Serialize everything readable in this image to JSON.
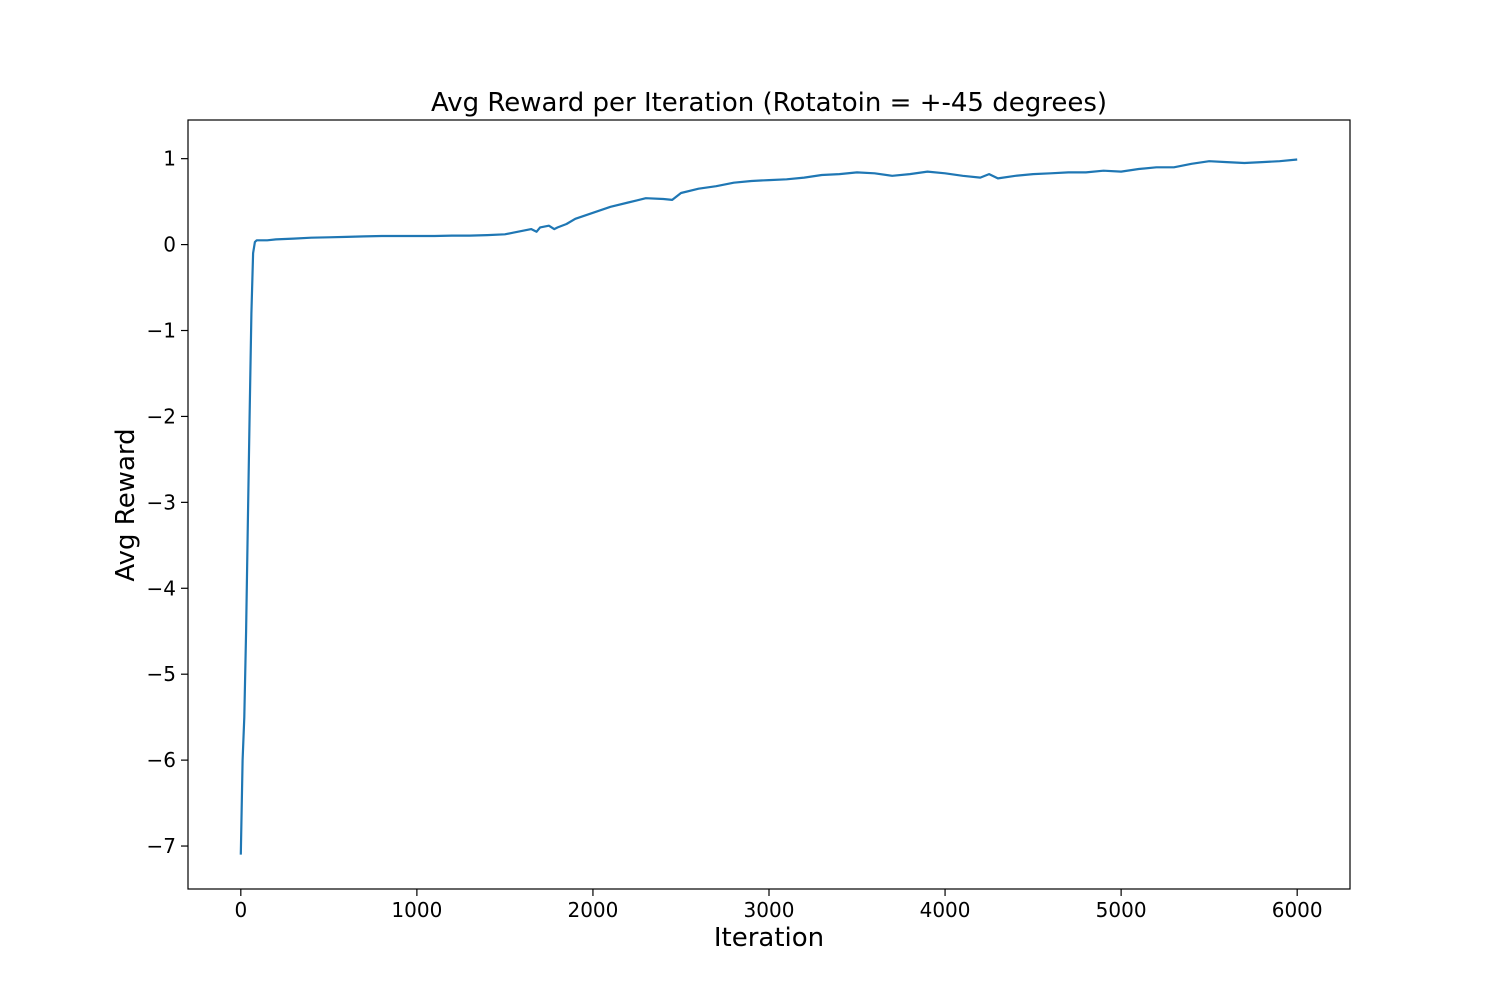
{
  "chart_data": {
    "type": "line",
    "title": "Avg Reward per Iteration (Rotatoin = +-45 degrees)",
    "xlabel": "Iteration",
    "ylabel": "Avg Reward",
    "xlim": [
      -300,
      6300
    ],
    "ylim": [
      -7.5,
      1.45
    ],
    "xticks": [
      0,
      1000,
      2000,
      3000,
      4000,
      5000,
      6000
    ],
    "xtick_labels": [
      "0",
      "1000",
      "2000",
      "3000",
      "4000",
      "5000",
      "6000"
    ],
    "yticks": [
      1,
      0,
      -1,
      -2,
      -3,
      -4,
      -5,
      -6,
      -7
    ],
    "ytick_labels": [
      "1",
      "0",
      "−1",
      "−2",
      "−3",
      "−4",
      "−5",
      "−6",
      "−7"
    ],
    "grid": false,
    "line_color": "#1f77b4",
    "series": [
      {
        "x": [
          0,
          10,
          20,
          30,
          40,
          50,
          60,
          70,
          80,
          90,
          100,
          120,
          150,
          200,
          300,
          400,
          500,
          600,
          700,
          800,
          900,
          1000,
          1100,
          1200,
          1300,
          1400,
          1500,
          1550,
          1600,
          1650,
          1680,
          1700,
          1750,
          1780,
          1800,
          1850,
          1900,
          2000,
          2100,
          2200,
          2300,
          2400,
          2450,
          2500,
          2600,
          2700,
          2800,
          2900,
          3000,
          3100,
          3200,
          3300,
          3400,
          3500,
          3600,
          3700,
          3800,
          3900,
          4000,
          4100,
          4200,
          4250,
          4300,
          4400,
          4500,
          4600,
          4700,
          4800,
          4900,
          5000,
          5100,
          5200,
          5300,
          5400,
          5500,
          5600,
          5700,
          5800,
          5900,
          6000
        ],
        "values": [
          -7.1,
          -6.0,
          -5.5,
          -4.5,
          -3.2,
          -2.0,
          -0.8,
          -0.1,
          0.03,
          0.05,
          0.05,
          0.05,
          0.05,
          0.06,
          0.07,
          0.08,
          0.085,
          0.09,
          0.095,
          0.1,
          0.1,
          0.1,
          0.1,
          0.105,
          0.105,
          0.11,
          0.12,
          0.14,
          0.16,
          0.18,
          0.15,
          0.2,
          0.22,
          0.18,
          0.2,
          0.24,
          0.3,
          0.37,
          0.44,
          0.49,
          0.54,
          0.53,
          0.52,
          0.6,
          0.65,
          0.68,
          0.72,
          0.74,
          0.75,
          0.76,
          0.78,
          0.81,
          0.82,
          0.84,
          0.83,
          0.8,
          0.82,
          0.85,
          0.83,
          0.8,
          0.78,
          0.82,
          0.77,
          0.8,
          0.82,
          0.83,
          0.84,
          0.84,
          0.86,
          0.85,
          0.88,
          0.9,
          0.9,
          0.94,
          0.97,
          0.96,
          0.95,
          0.96,
          0.97,
          0.99
        ]
      }
    ]
  }
}
